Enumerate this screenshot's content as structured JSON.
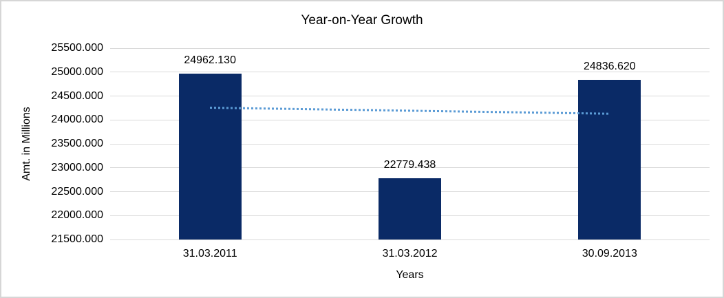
{
  "chart_data": {
    "type": "bar",
    "title": "Year-on-Year Growth",
    "categories": [
      "31.03.2011",
      "31.03.2012",
      "30.09.2013"
    ],
    "values": [
      24962.13,
      22779.438,
      24836.62
    ],
    "value_labels": [
      "24962.130",
      "22779.438",
      "24836.620"
    ],
    "xlabel": "Years",
    "ylabel": "Amt. in Millions",
    "ylim": [
      21500,
      25500
    ],
    "ytick_step": 500,
    "ytick_labels": [
      "25500.000",
      "25000.000",
      "24500.000",
      "24000.000",
      "23500.000",
      "23000.000",
      "22500.000",
      "22000.000",
      "21500.000"
    ],
    "grid": true,
    "legend_position": "none",
    "trendline": {
      "type": "linear",
      "style": "dotted",
      "values": [
        24255.5,
        24192.7,
        24130.0
      ]
    },
    "colors": {
      "bar": "#0a2a66",
      "trendline_dots": "#5b9bd5",
      "gridline": "#d9d9d9",
      "text": "#000000",
      "background": "#ffffff",
      "frame_border": "#d6d6d6"
    }
  }
}
